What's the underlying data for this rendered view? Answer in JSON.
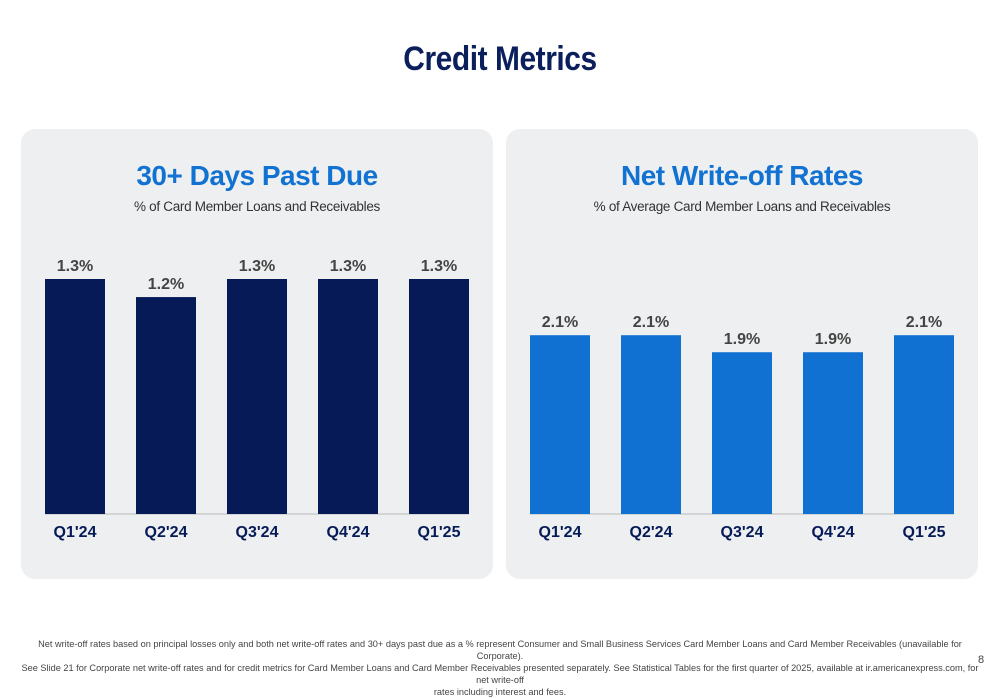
{
  "page": {
    "title": "Credit Metrics",
    "footnote_lines": [
      "Net write-off rates based on principal losses only and both net write-off rates and 30+ days past due as a % represent Consumer and Small Business Services Card Member Loans and Card Member Receivables (unavailable for Corporate).",
      "See Slide 21 for Corporate net write-off rates and for credit metrics for Card Member Loans and Card Member Receivables presented separately. See Statistical Tables for the first quarter of 2025, available at ir.americanexpress.com, for net write-off",
      "rates including interest and fees."
    ],
    "page_number": "8"
  },
  "panels": [
    {
      "title": "30+ Days Past Due",
      "subtitle": "% of Card Member Loans and Receivables"
    },
    {
      "title": "Net Write-off Rates",
      "subtitle": "% of Average Card Member Loans and Receivables"
    }
  ],
  "chart_data": [
    {
      "type": "bar",
      "title": "30+ Days Past Due",
      "subtitle": "% of Card Member Loans and Receivables",
      "categories": [
        "Q1'24",
        "Q2'24",
        "Q3'24",
        "Q4'24",
        "Q1'25"
      ],
      "values": [
        1.3,
        1.2,
        1.3,
        1.3,
        1.3
      ],
      "value_labels": [
        "1.3%",
        "1.2%",
        "1.3%",
        "1.3%",
        "1.3%"
      ],
      "ylim": [
        0,
        1.3
      ],
      "bar_color": "#051a57",
      "grid": false
    },
    {
      "type": "bar",
      "title": "Net Write-off Rates",
      "subtitle": "% of Average Card Member Loans and Receivables",
      "categories": [
        "Q1'24",
        "Q2'24",
        "Q3'24",
        "Q4'24",
        "Q1'25"
      ],
      "values": [
        2.1,
        2.1,
        1.9,
        1.9,
        2.1
      ],
      "value_labels": [
        "2.1%",
        "2.1%",
        "1.9%",
        "1.9%",
        "2.1%"
      ],
      "ylim": [
        0,
        2.76
      ],
      "bar_color": "#1171d2",
      "grid": false
    }
  ],
  "colors": {
    "title": "#0b1f5c",
    "panel_title": "#1272d1",
    "panel_background": "#eeeff0",
    "axis_label": "#051a57",
    "value_label": "#444444"
  }
}
